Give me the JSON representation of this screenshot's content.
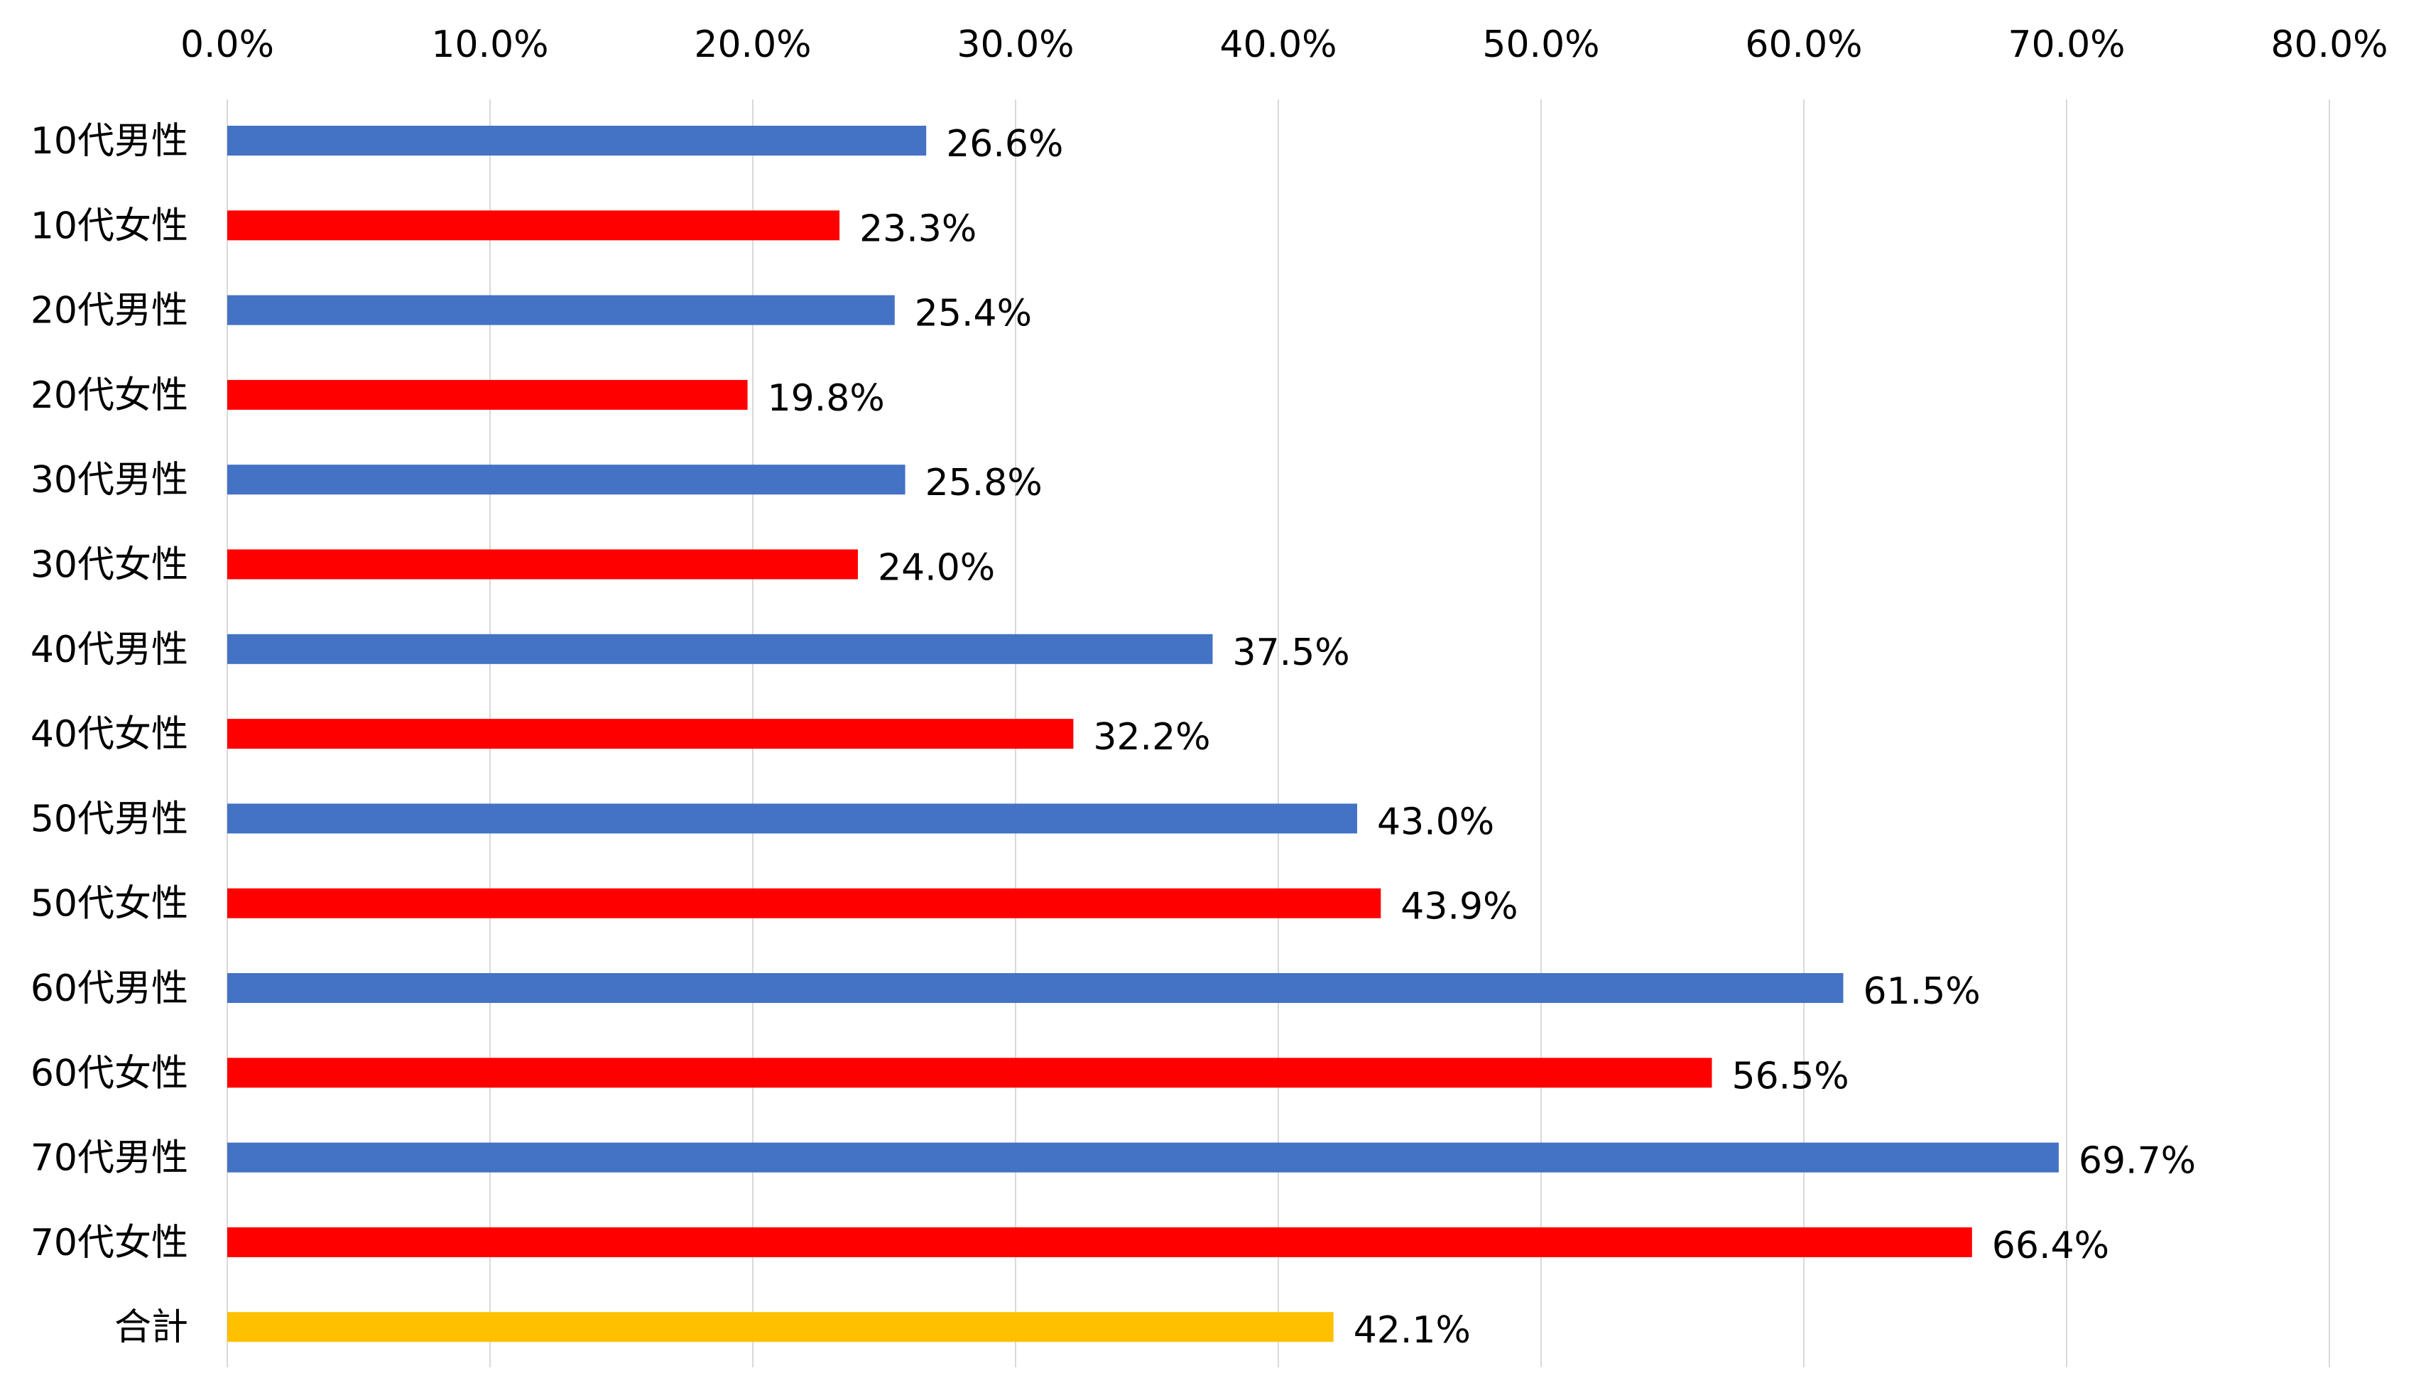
{
  "chart_data": {
    "type": "bar",
    "orientation": "horizontal",
    "title": "",
    "xlabel": "",
    "ylabel": "",
    "xlim": [
      0,
      80
    ],
    "x_ticks": [
      "0.0%",
      "10.0%",
      "20.0%",
      "30.0%",
      "40.0%",
      "50.0%",
      "60.0%",
      "70.0%",
      "80.0%"
    ],
    "x_tick_values": [
      0,
      10,
      20,
      30,
      40,
      50,
      60,
      70,
      80
    ],
    "x_axis_position": "top",
    "grid": true,
    "legend": "none",
    "categories": [
      "10代男性",
      "10代女性",
      "20代男性",
      "20代女性",
      "30代男性",
      "30代女性",
      "40代男性",
      "40代女性",
      "50代男性",
      "50代女性",
      "60代男性",
      "60代女性",
      "70代男性",
      "70代女性",
      "合計"
    ],
    "values": [
      26.6,
      23.3,
      25.4,
      19.8,
      25.8,
      24.0,
      37.5,
      32.2,
      43.0,
      43.9,
      61.5,
      56.5,
      69.7,
      66.4,
      42.1
    ],
    "data_labels": [
      "26.6%",
      "23.3%",
      "25.4%",
      "19.8%",
      "25.8%",
      "24.0%",
      "37.5%",
      "32.2%",
      "43.0%",
      "43.9%",
      "61.5%",
      "56.5%",
      "69.7%",
      "66.4%",
      "42.1%"
    ],
    "bar_colors": [
      "#4472c4",
      "#ff0000",
      "#4472c4",
      "#ff0000",
      "#4472c4",
      "#ff0000",
      "#4472c4",
      "#ff0000",
      "#4472c4",
      "#ff0000",
      "#4472c4",
      "#ff0000",
      "#4472c4",
      "#ff0000",
      "#ffc000"
    ],
    "colors": {
      "male": "#4472c4",
      "female": "#ff0000",
      "total": "#ffc000",
      "grid": "#d9d9d9"
    }
  }
}
